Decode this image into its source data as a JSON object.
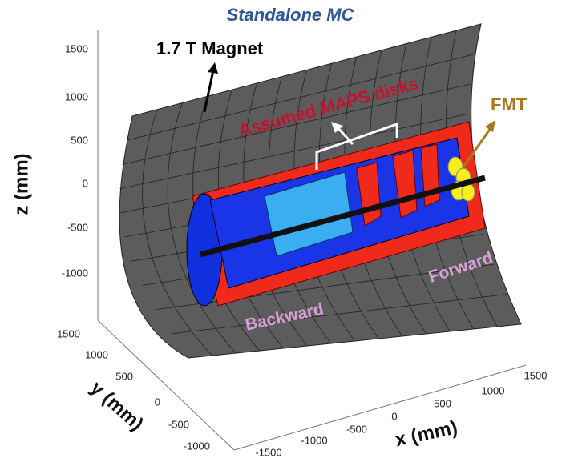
{
  "title": "Standalone MC",
  "annotations": {
    "magnet": "1.7 T Magnet",
    "disks": "Assumed MAPS disks",
    "fmt": "FMT",
    "forward": "Forward",
    "backward": "Backward"
  },
  "axes": {
    "z": {
      "label": "z (mm)",
      "ticks": [
        "1500",
        "1000",
        "500",
        "0",
        "-500",
        "-1000"
      ]
    },
    "y": {
      "label": "y (mm)",
      "ticks": [
        "1500",
        "1000",
        "500",
        "0",
        "-500",
        "-1000"
      ]
    },
    "x": {
      "label": "x (mm)",
      "ticks": [
        "-1500",
        "-1000",
        "-500",
        "0",
        "500",
        "1000",
        "1500"
      ]
    }
  }
}
